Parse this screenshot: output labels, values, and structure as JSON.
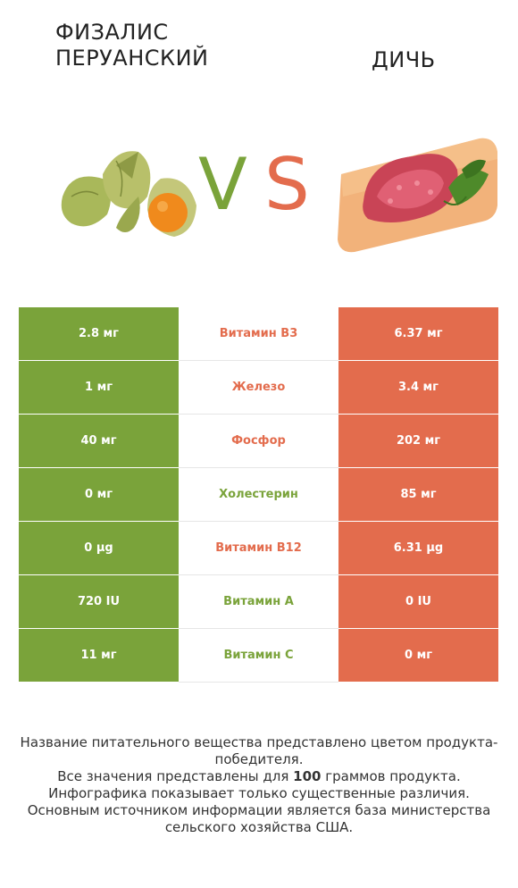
{
  "left_food": "ФИЗАЛИС ПЕРУАНСКИЙ",
  "right_food": "ДИЧЬ",
  "vs_v": "V",
  "vs_s": "S",
  "colors": {
    "green": "#7aa33a",
    "red": "#e36c4d"
  },
  "rows": [
    {
      "left": "2.8 мг",
      "nutrient": "Витамин B3",
      "right": "6.37 мг",
      "winner": "red"
    },
    {
      "left": "1 мг",
      "nutrient": "Железо",
      "right": "3.4 мг",
      "winner": "red"
    },
    {
      "left": "40 мг",
      "nutrient": "Фосфор",
      "right": "202 мг",
      "winner": "red"
    },
    {
      "left": "0 мг",
      "nutrient": "Холестерин",
      "right": "85 мг",
      "winner": "green"
    },
    {
      "left": "0 µg",
      "nutrient": "Витамин B12",
      "right": "6.31 µg",
      "winner": "red"
    },
    {
      "left": "720 IU",
      "nutrient": "Витамин А",
      "right": "0 IU",
      "winner": "green"
    },
    {
      "left": "11 мг",
      "nutrient": "Витамин C",
      "right": "0 мг",
      "winner": "green"
    }
  ],
  "footnote": {
    "line1": "Название питательного вещества представлено цветом продукта-победителя.",
    "line2_pre": "Все значения представлены для ",
    "line2_bold": "100",
    "line2_post": " граммов продукта.",
    "line3": "Инфографика показывает только существенные различия.",
    "line4": "Основным источником информации является база министерства сельского хозяйства США."
  }
}
